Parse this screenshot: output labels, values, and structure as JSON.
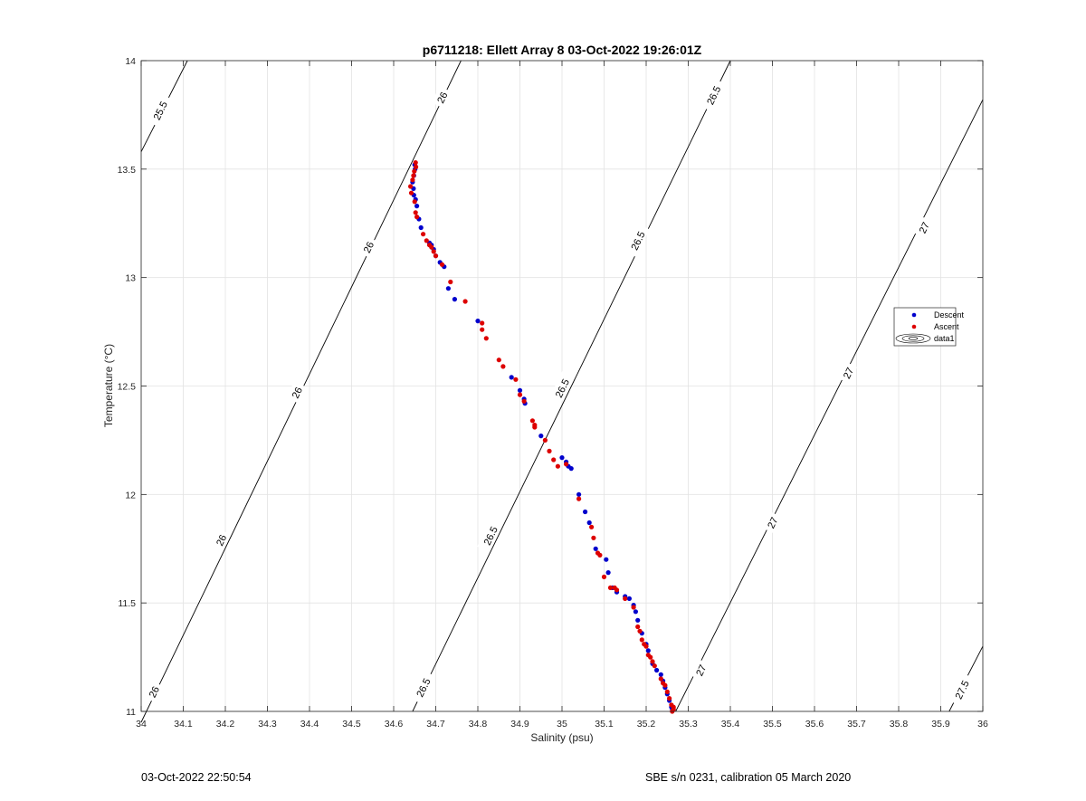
{
  "chart_data": {
    "type": "scatter",
    "title": "p6711218: Ellett Array 8 03-Oct-2022 19:26:01Z",
    "xlabel": "Salinity (psu)",
    "ylabel": "Temperature (°C)",
    "xlim": [
      34,
      36
    ],
    "ylim": [
      11,
      14
    ],
    "xticks": [
      34,
      34.1,
      34.2,
      34.3,
      34.4,
      34.5,
      34.6,
      34.7,
      34.8,
      34.9,
      35,
      35.1,
      35.2,
      35.3,
      35.4,
      35.5,
      35.6,
      35.7,
      35.8,
      35.9,
      36
    ],
    "xtick_labels": [
      "34",
      "34.1",
      "34.2",
      "34.3",
      "34.4",
      "34.5",
      "34.6",
      "34.7",
      "34.8",
      "34.9",
      "35",
      "35.1",
      "35.2",
      "35.3",
      "35.4",
      "35.5",
      "35.6",
      "35.7",
      "35.8",
      "35.9",
      "36"
    ],
    "yticks": [
      11,
      11.5,
      12,
      12.5,
      13,
      13.5,
      14
    ],
    "ytick_labels": [
      "11",
      "11.5",
      "12",
      "12.5",
      "13",
      "13.5",
      "14"
    ],
    "grid": true,
    "legend": {
      "position": "right",
      "entries": [
        "Descent",
        "Ascent",
        "data1"
      ]
    },
    "contour_lines": [
      {
        "level": "25.5",
        "points": [
          [
            34.0,
            13.58
          ],
          [
            34.11,
            14.0
          ]
        ]
      },
      {
        "level": "26",
        "points": [
          [
            34.0,
            10.95
          ],
          [
            34.76,
            14.0
          ]
        ]
      },
      {
        "level": "26.5",
        "points": [
          [
            34.645,
            11.0
          ],
          [
            35.4,
            14.0
          ]
        ]
      },
      {
        "level": "27",
        "points": [
          [
            35.27,
            11.0
          ],
          [
            36.0,
            13.82
          ]
        ]
      },
      {
        "level": "27.5",
        "points": [
          [
            35.92,
            11.0
          ],
          [
            36.0,
            11.3
          ]
        ]
      }
    ],
    "contour_labels": [
      {
        "text": "25.5",
        "x": 34.045,
        "y": 13.77
      },
      {
        "text": "26",
        "x": 34.715,
        "y": 13.83
      },
      {
        "text": "26",
        "x": 34.54,
        "y": 13.14
      },
      {
        "text": "26",
        "x": 34.37,
        "y": 12.47
      },
      {
        "text": "26",
        "x": 34.19,
        "y": 11.79
      },
      {
        "text": "26",
        "x": 34.03,
        "y": 11.09
      },
      {
        "text": "26.5",
        "x": 35.36,
        "y": 13.84
      },
      {
        "text": "26.5",
        "x": 35.18,
        "y": 13.17
      },
      {
        "text": "26.5",
        "x": 35.0,
        "y": 12.49
      },
      {
        "text": "26.5",
        "x": 34.83,
        "y": 11.81
      },
      {
        "text": "26.5",
        "x": 34.67,
        "y": 11.11
      },
      {
        "text": "27",
        "x": 35.86,
        "y": 13.23
      },
      {
        "text": "27",
        "x": 35.68,
        "y": 12.56
      },
      {
        "text": "27",
        "x": 35.5,
        "y": 11.87
      },
      {
        "text": "27",
        "x": 35.33,
        "y": 11.19
      },
      {
        "text": "27.5",
        "x": 35.95,
        "y": 11.1
      }
    ],
    "series": [
      {
        "name": "Descent",
        "color": "#0000cc",
        "points": [
          [
            34.65,
            13.52
          ],
          [
            34.651,
            13.5
          ],
          [
            34.648,
            13.47
          ],
          [
            34.645,
            13.44
          ],
          [
            34.647,
            13.41
          ],
          [
            34.648,
            13.38
          ],
          [
            34.652,
            13.36
          ],
          [
            34.655,
            13.33
          ],
          [
            34.66,
            13.27
          ],
          [
            34.665,
            13.23
          ],
          [
            34.685,
            13.16
          ],
          [
            34.69,
            13.15
          ],
          [
            34.695,
            13.13
          ],
          [
            34.7,
            13.1
          ],
          [
            34.71,
            13.07
          ],
          [
            34.72,
            13.05
          ],
          [
            34.73,
            12.95
          ],
          [
            34.745,
            12.9
          ],
          [
            34.8,
            12.8
          ],
          [
            34.88,
            12.54
          ],
          [
            34.9,
            12.48
          ],
          [
            34.91,
            12.44
          ],
          [
            34.912,
            12.42
          ],
          [
            34.95,
            12.27
          ],
          [
            35.0,
            12.17
          ],
          [
            35.01,
            12.15
          ],
          [
            35.015,
            12.13
          ],
          [
            35.022,
            12.12
          ],
          [
            35.04,
            12.0
          ],
          [
            35.055,
            11.92
          ],
          [
            35.065,
            11.87
          ],
          [
            35.08,
            11.75
          ],
          [
            35.105,
            11.7
          ],
          [
            35.11,
            11.64
          ],
          [
            35.12,
            11.57
          ],
          [
            35.13,
            11.55
          ],
          [
            35.15,
            11.53
          ],
          [
            35.16,
            11.52
          ],
          [
            35.17,
            11.49
          ],
          [
            35.175,
            11.46
          ],
          [
            35.18,
            11.42
          ],
          [
            35.19,
            11.36
          ],
          [
            35.2,
            11.31
          ],
          [
            35.205,
            11.28
          ],
          [
            35.215,
            11.22
          ],
          [
            35.225,
            11.19
          ],
          [
            35.235,
            11.17
          ],
          [
            35.24,
            11.14
          ],
          [
            35.245,
            11.11
          ],
          [
            35.25,
            11.08
          ],
          [
            35.255,
            11.05
          ],
          [
            35.26,
            11.02
          ],
          [
            35.262,
            11.01
          ]
        ]
      },
      {
        "name": "Ascent",
        "color": "#dd0000",
        "points": [
          [
            34.652,
            13.53
          ],
          [
            34.653,
            13.51
          ],
          [
            34.649,
            13.49
          ],
          [
            34.647,
            13.47
          ],
          [
            34.645,
            13.45
          ],
          [
            34.64,
            13.42
          ],
          [
            34.642,
            13.39
          ],
          [
            34.65,
            13.35
          ],
          [
            34.652,
            13.3
          ],
          [
            34.655,
            13.28
          ],
          [
            34.67,
            13.2
          ],
          [
            34.678,
            13.17
          ],
          [
            34.685,
            13.15
          ],
          [
            34.69,
            13.14
          ],
          [
            34.695,
            13.12
          ],
          [
            34.7,
            13.1
          ],
          [
            34.715,
            13.06
          ],
          [
            34.735,
            12.98
          ],
          [
            34.77,
            12.89
          ],
          [
            34.81,
            12.79
          ],
          [
            34.81,
            12.76
          ],
          [
            34.82,
            12.72
          ],
          [
            34.85,
            12.62
          ],
          [
            34.86,
            12.59
          ],
          [
            34.89,
            12.53
          ],
          [
            34.9,
            12.46
          ],
          [
            34.91,
            12.43
          ],
          [
            34.93,
            12.34
          ],
          [
            34.935,
            12.32
          ],
          [
            34.935,
            12.31
          ],
          [
            34.96,
            12.25
          ],
          [
            34.97,
            12.2
          ],
          [
            34.98,
            12.16
          ],
          [
            34.99,
            12.13
          ],
          [
            35.01,
            12.14
          ],
          [
            35.04,
            11.98
          ],
          [
            35.07,
            11.85
          ],
          [
            35.075,
            11.8
          ],
          [
            35.085,
            11.73
          ],
          [
            35.09,
            11.72
          ],
          [
            35.1,
            11.62
          ],
          [
            35.115,
            11.57
          ],
          [
            35.125,
            11.57
          ],
          [
            35.13,
            11.56
          ],
          [
            35.15,
            11.52
          ],
          [
            35.17,
            11.48
          ],
          [
            35.18,
            11.39
          ],
          [
            35.185,
            11.37
          ],
          [
            35.19,
            11.33
          ],
          [
            35.195,
            11.31
          ],
          [
            35.2,
            11.3
          ],
          [
            35.205,
            11.26
          ],
          [
            35.21,
            11.25
          ],
          [
            35.215,
            11.23
          ],
          [
            35.22,
            11.21
          ],
          [
            35.235,
            11.15
          ],
          [
            35.24,
            11.13
          ],
          [
            35.245,
            11.12
          ],
          [
            35.25,
            11.09
          ],
          [
            35.255,
            11.06
          ],
          [
            35.26,
            11.03
          ],
          [
            35.265,
            11.02
          ],
          [
            35.265,
            11.01
          ],
          [
            35.262,
            11.0
          ]
        ]
      }
    ]
  },
  "footer": {
    "left": "03-Oct-2022 22:50:54",
    "right": "SBE s/n 0231, calibration 05 March 2020"
  }
}
